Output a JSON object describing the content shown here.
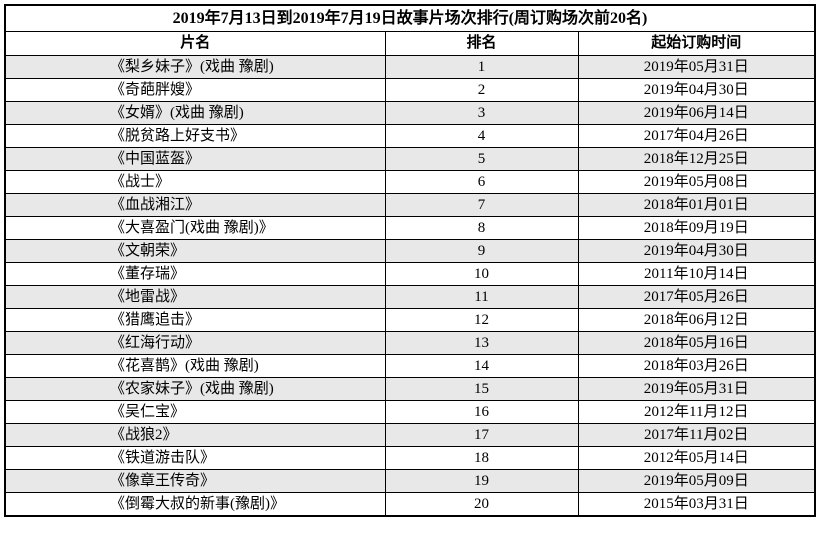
{
  "table": {
    "title": "2019年7月13日到2019年7月19日故事片场次排行(周订购场次前20名)",
    "columns": [
      "片名",
      "排名",
      "起始订购时间"
    ],
    "stripe_color": "#e8e8e8",
    "border_color": "#000000",
    "rows": [
      {
        "film": "《梨乡妹子》(戏曲 豫剧)",
        "rank": "1",
        "date": "2019年05月31日"
      },
      {
        "film": "《奇葩胖嫂》",
        "rank": "2",
        "date": "2019年04月30日"
      },
      {
        "film": "《女婿》(戏曲 豫剧)",
        "rank": "3",
        "date": "2019年06月14日"
      },
      {
        "film": "《脱贫路上好支书》",
        "rank": "4",
        "date": "2017年04月26日"
      },
      {
        "film": "《中国蓝盔》",
        "rank": "5",
        "date": "2018年12月25日"
      },
      {
        "film": "《战士》",
        "rank": "6",
        "date": "2019年05月08日"
      },
      {
        "film": "《血战湘江》",
        "rank": "7",
        "date": "2018年01月01日"
      },
      {
        "film": "《大喜盈门(戏曲 豫剧)》",
        "rank": "8",
        "date": "2018年09月19日"
      },
      {
        "film": "《文朝荣》",
        "rank": "9",
        "date": "2019年04月30日"
      },
      {
        "film": "《董存瑞》",
        "rank": "10",
        "date": "2011年10月14日"
      },
      {
        "film": "《地雷战》",
        "rank": "11",
        "date": "2017年05月26日"
      },
      {
        "film": "《猎鹰追击》",
        "rank": "12",
        "date": "2018年06月12日"
      },
      {
        "film": "《红海行动》",
        "rank": "13",
        "date": "2018年05月16日"
      },
      {
        "film": "《花喜鹊》(戏曲 豫剧)",
        "rank": "14",
        "date": "2018年03月26日"
      },
      {
        "film": "《农家妹子》(戏曲 豫剧)",
        "rank": "15",
        "date": "2019年05月31日"
      },
      {
        "film": "《吴仁宝》",
        "rank": "16",
        "date": "2012年11月12日"
      },
      {
        "film": "《战狼2》",
        "rank": "17",
        "date": "2017年11月02日"
      },
      {
        "film": "《铁道游击队》",
        "rank": "18",
        "date": "2012年05月14日"
      },
      {
        "film": "《像章王传奇》",
        "rank": "19",
        "date": "2019年05月09日"
      },
      {
        "film": "《倒霉大叔的新事(豫剧)》",
        "rank": "20",
        "date": "2015年03月31日"
      }
    ]
  }
}
